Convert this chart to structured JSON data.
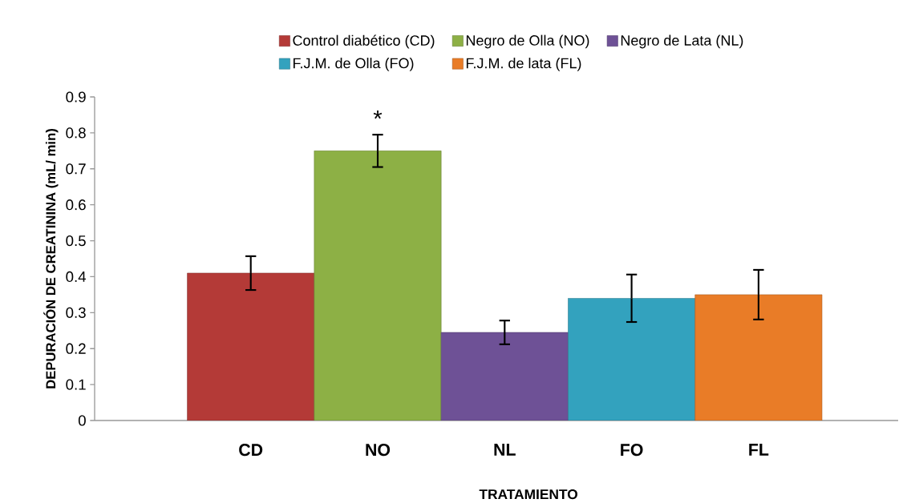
{
  "chart_data": {
    "type": "bar",
    "xlabel": "TRATAMIENTO",
    "ylabel": "DEPURACIÓN DE CREATININA  (mL/ min)",
    "categories": [
      "CD",
      "NO",
      "NL",
      "FO",
      "FL"
    ],
    "series": [
      {
        "name": "Control diabético (CD)",
        "color": "#b43a37",
        "values": [
          0.41,
          null,
          null,
          null,
          null
        ],
        "errors": [
          0.047,
          null,
          null,
          null,
          null
        ]
      },
      {
        "name": "Negro de Olla (NO)",
        "color": "#8db045",
        "values": [
          null,
          0.75,
          null,
          null,
          null
        ],
        "errors": [
          null,
          0.045,
          null,
          null,
          null
        ]
      },
      {
        "name": "Negro de Lata (NL)",
        "color": "#6e5196",
        "values": [
          null,
          null,
          0.245,
          null,
          null
        ],
        "errors": [
          null,
          null,
          0.033,
          null,
          null
        ]
      },
      {
        "name": "F.J.M. de Olla (FO)",
        "color": "#33a2be",
        "values": [
          null,
          null,
          null,
          0.34,
          null
        ],
        "errors": [
          null,
          null,
          null,
          0.066,
          null
        ]
      },
      {
        "name": "F.J.M. de lata (FL)",
        "color": "#e97c27",
        "values": [
          null,
          null,
          null,
          null,
          0.35
        ],
        "errors": [
          null,
          null,
          null,
          null,
          0.069
        ]
      }
    ],
    "ylim": [
      0,
      0.9
    ],
    "yticks": [
      0,
      0.1,
      0.2,
      0.3,
      0.4,
      0.5,
      0.6,
      0.7,
      0.8,
      0.9
    ],
    "annotations": [
      "*"
    ],
    "legend": "top",
    "grid": false
  }
}
